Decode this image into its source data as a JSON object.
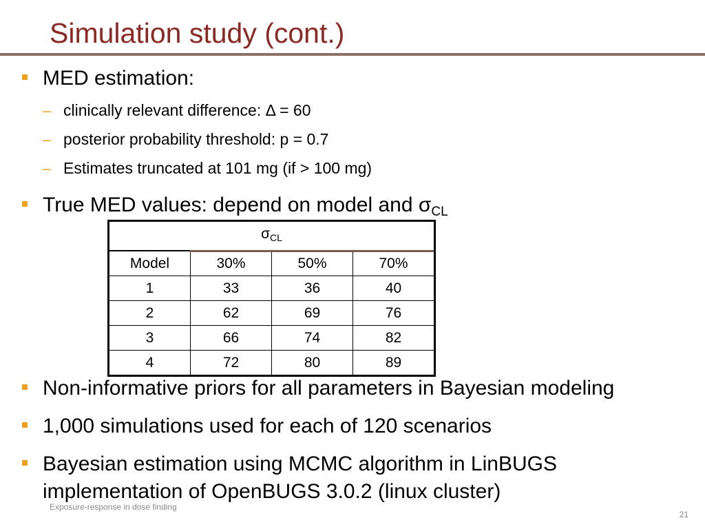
{
  "slide": {
    "title": "Simulation study (cont.)",
    "bullets": {
      "med_estimation": "MED estimation:",
      "sub1": "clinically relevant difference: Δ = 60",
      "sub2": "posterior probability threshold: p = 0.7",
      "sub3": "Estimates truncated at 101 mg (if > 100 mg)",
      "true_med_prefix": "True MED values: depend on model and σ",
      "true_med_subscript": "CL",
      "priors": "Non-informative priors for all parameters in Bayesian modeling",
      "simulations": "1,000 simulations used for each of 120 scenarios",
      "bayes_line1": "Bayesian estimation using MCMC algorithm in LinBUGS",
      "bayes_line2": "implementation of OpenBUGS 3.0.2 (linux cluster)"
    },
    "sub_marker": "–",
    "footer": "Exposure-response in dose finding",
    "page_number": "21",
    "colors": {
      "title": "#8b2a24",
      "bullet": "#f0a020",
      "rule": "#8b6f63"
    }
  },
  "table": {
    "sigma_symbol": "σ",
    "sigma_subscript": "CL",
    "headers": [
      "Model",
      "30%",
      "50%",
      "70%"
    ],
    "rows": [
      [
        "1",
        "33",
        "36",
        "40"
      ],
      [
        "2",
        "62",
        "69",
        "76"
      ],
      [
        "3",
        "66",
        "74",
        "82"
      ],
      [
        "4",
        "72",
        "80",
        "89"
      ]
    ]
  }
}
